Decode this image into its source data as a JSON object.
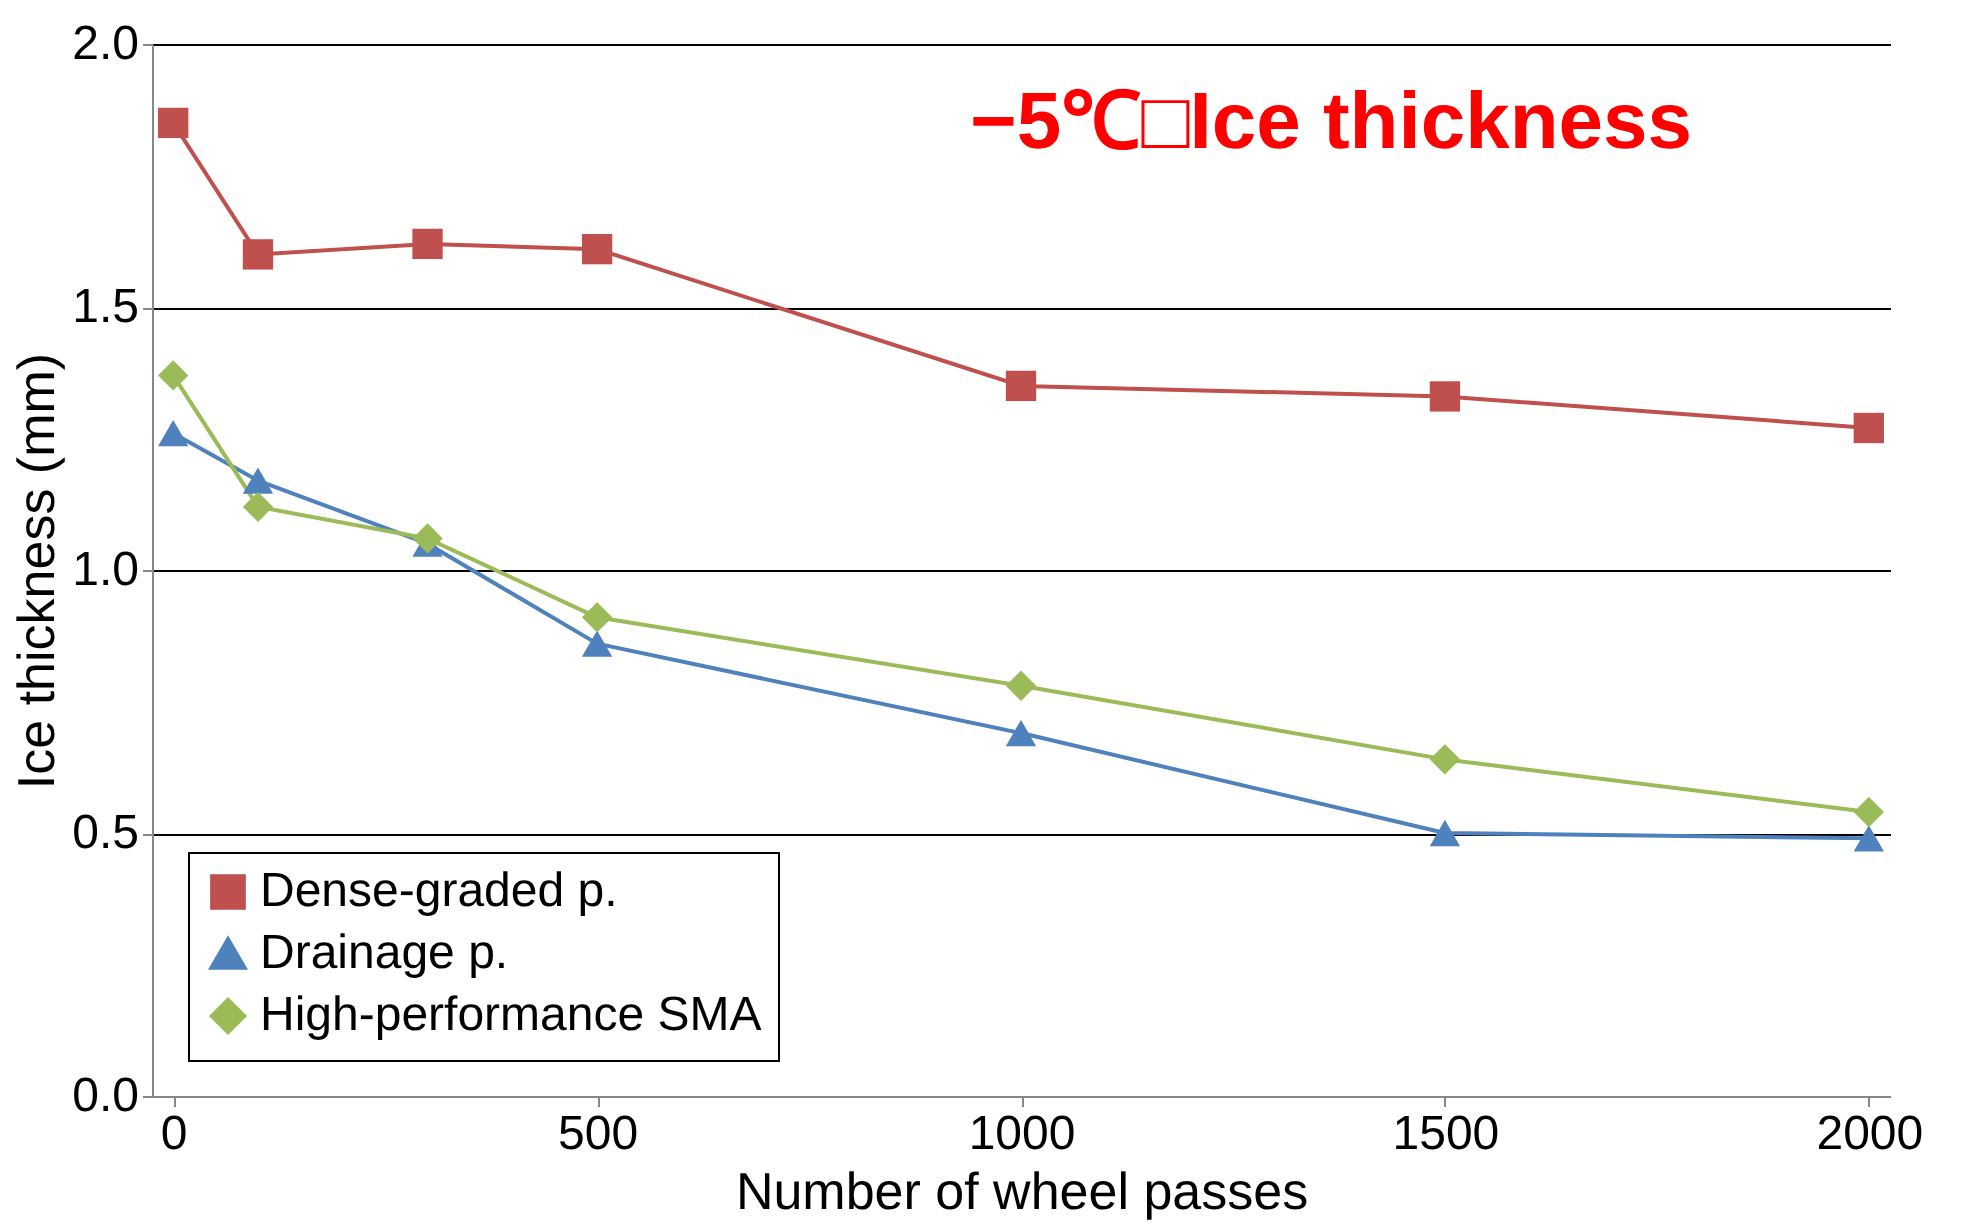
{
  "chart_data": {
    "type": "line",
    "title": "−5℃□Ice thickness",
    "xlabel": "Number of wheel passes",
    "ylabel": "Ice thickness (mm)",
    "x": [
      0,
      100,
      300,
      500,
      1000,
      1500,
      2000
    ],
    "series": [
      {
        "name": "Dense-graded p.",
        "color": "#c0504d",
        "marker": "square",
        "values": [
          1.85,
          1.6,
          1.62,
          1.61,
          1.35,
          1.33,
          1.27
        ]
      },
      {
        "name": "Drainage p.",
        "color": "#4f81bd",
        "marker": "triangle",
        "values": [
          1.26,
          1.17,
          1.05,
          0.86,
          0.69,
          0.5,
          0.49
        ]
      },
      {
        "name": "High-performance SMA",
        "color": "#9bbb59",
        "marker": "diamond",
        "values": [
          1.37,
          1.12,
          1.06,
          0.91,
          0.78,
          0.64,
          0.54
        ]
      }
    ],
    "xlim": [
      -25,
      2025
    ],
    "xticks": [
      0,
      500,
      1000,
      1500,
      2000
    ],
    "ylim": [
      0,
      2
    ],
    "yticks": [
      {
        "value": 0,
        "label": "0.0"
      },
      0.5,
      {
        "value": 1,
        "label": "1.0"
      },
      1.5,
      {
        "value": 2,
        "label": "2.0"
      }
    ],
    "grid": "y",
    "legend": "bottom left",
    "line_style": "solid"
  }
}
